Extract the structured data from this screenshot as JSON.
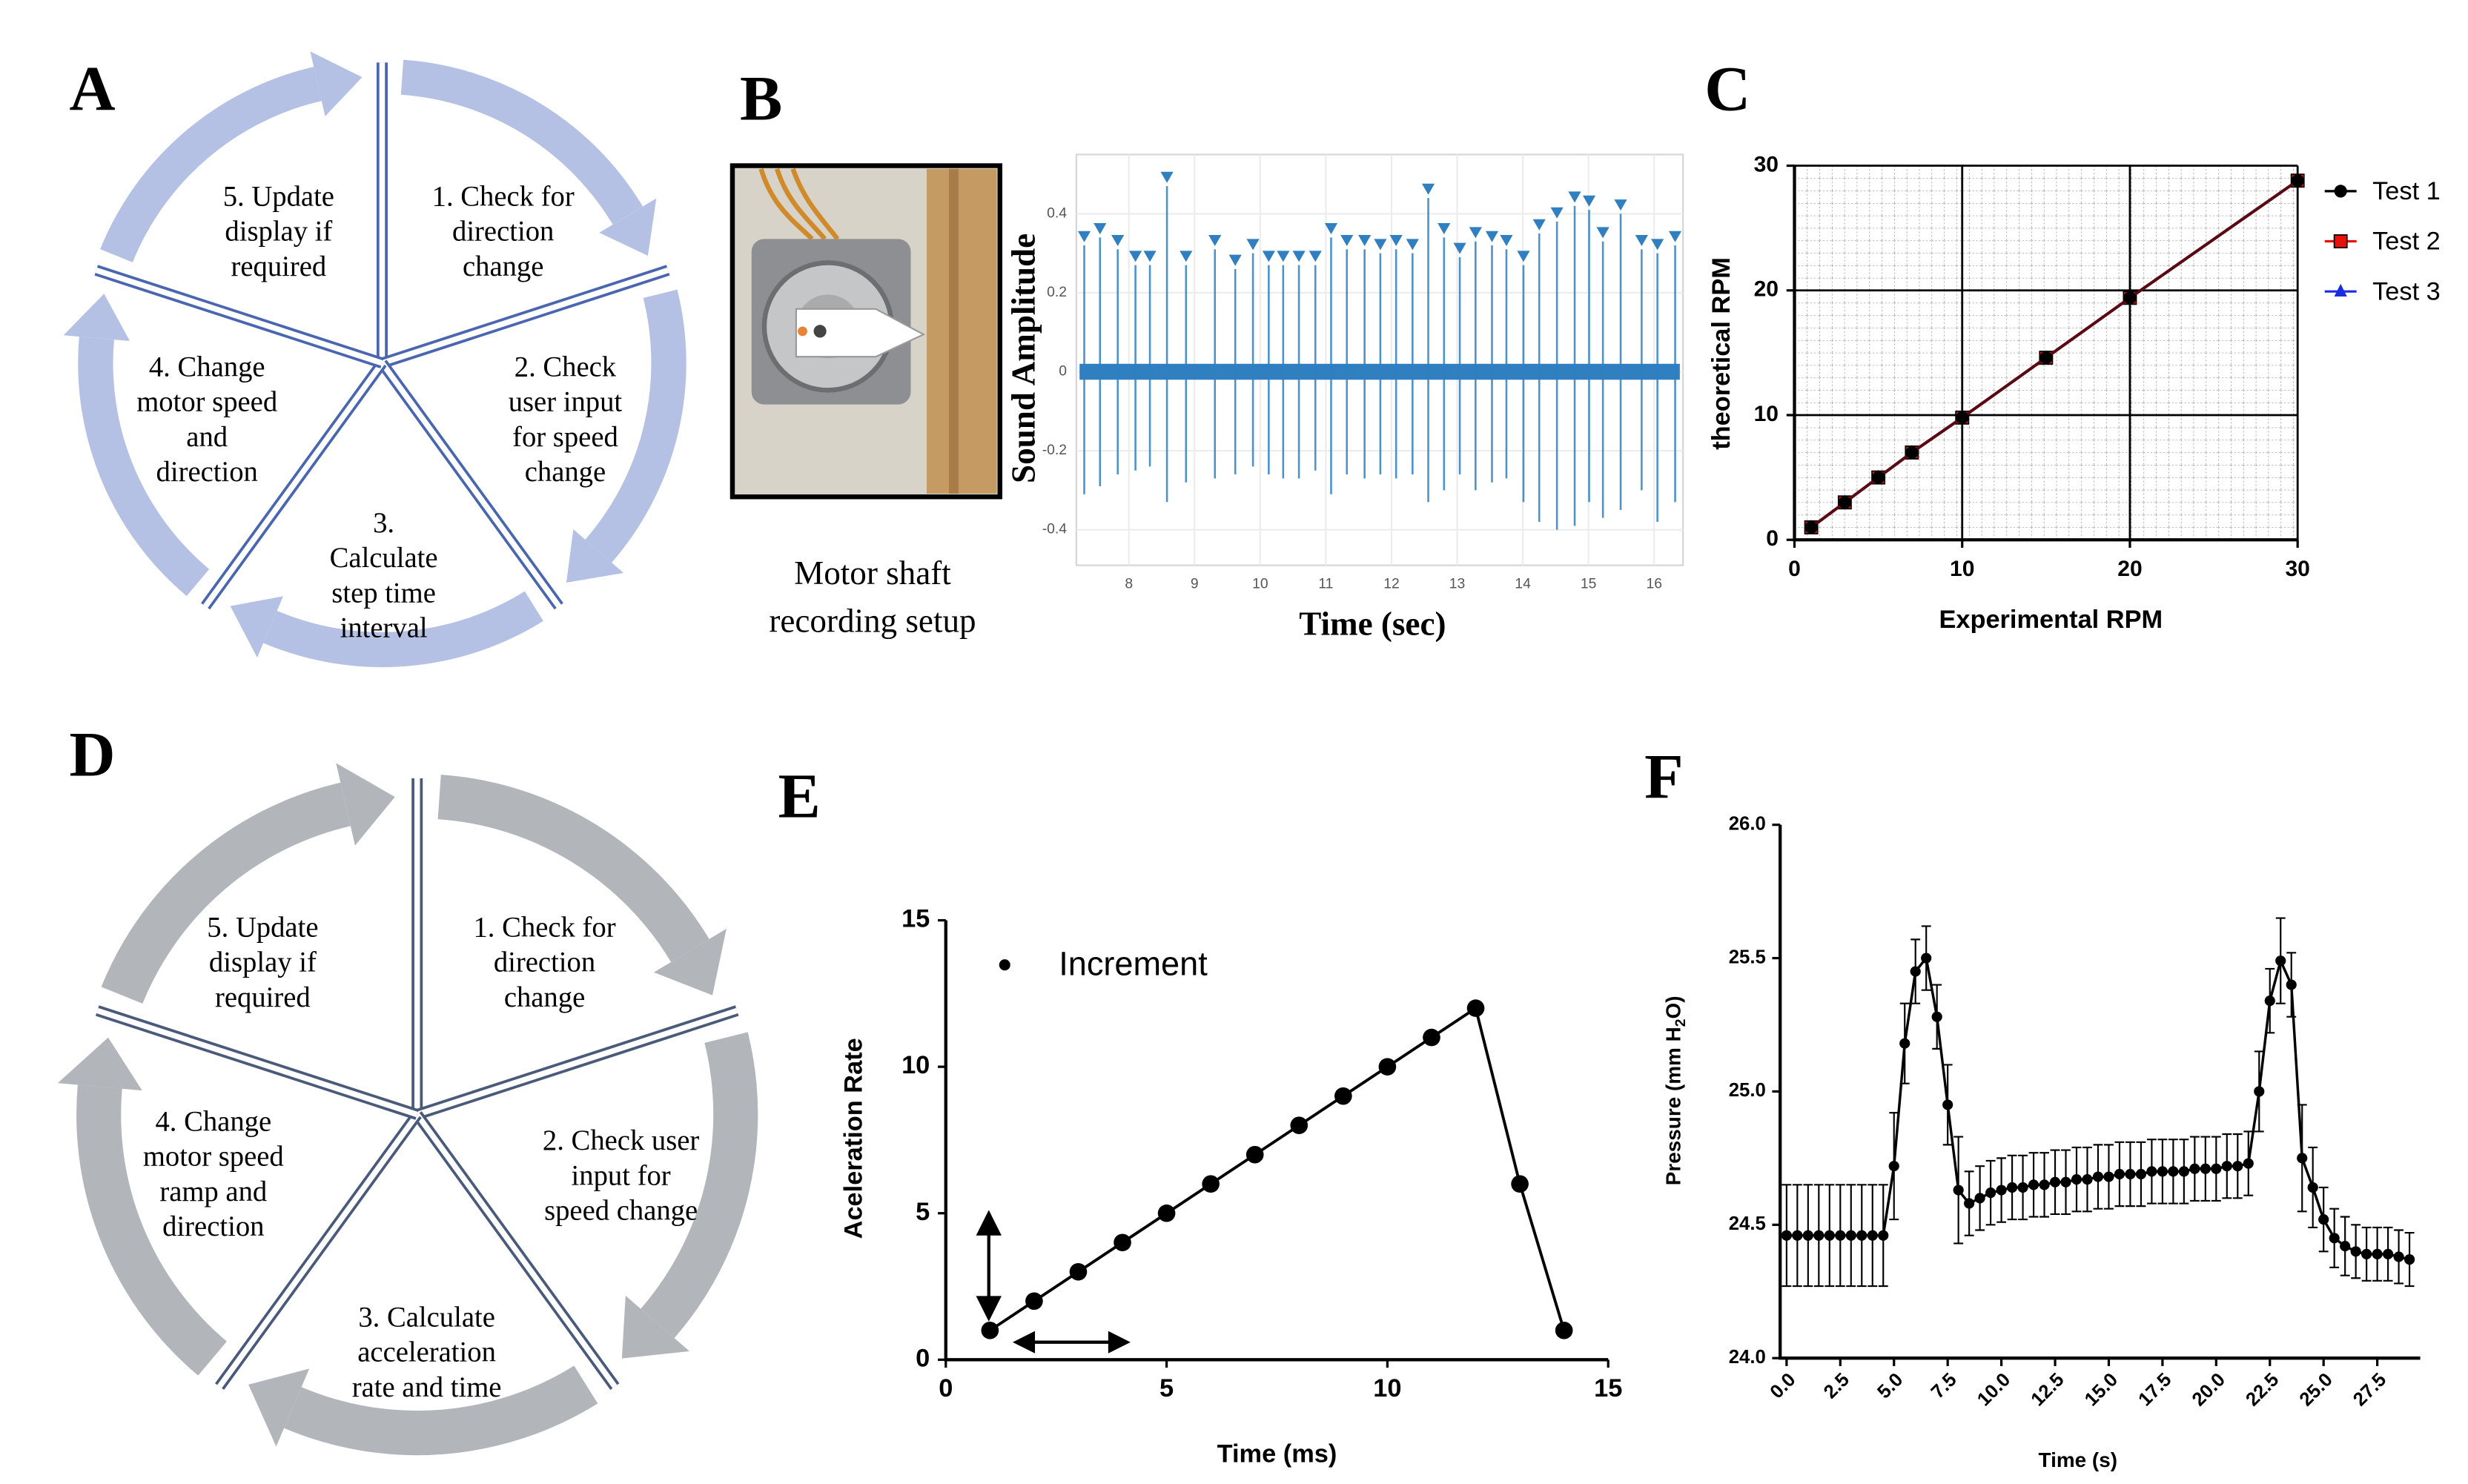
{
  "panel_labels": [
    "A",
    "B",
    "C",
    "D",
    "E",
    "F"
  ],
  "diagram_a": {
    "steps": [
      {
        "lines": [
          "1. Check for",
          "direction",
          "change"
        ]
      },
      {
        "lines": [
          "2. Check",
          "user input",
          "for speed",
          "change"
        ]
      },
      {
        "lines": [
          "3.",
          "Calculate",
          "step time",
          "interval"
        ]
      },
      {
        "lines": [
          "4. Change",
          "motor speed",
          "and",
          "direction"
        ]
      },
      {
        "lines": [
          "5. Update",
          "display if",
          "required"
        ]
      }
    ]
  },
  "diagram_d": {
    "steps": [
      {
        "lines": [
          "1. Check for",
          "direction",
          "change"
        ]
      },
      {
        "lines": [
          "2. Check user",
          "input for",
          "speed change"
        ]
      },
      {
        "lines": [
          "3. Calculate",
          "acceleration",
          "rate and time"
        ]
      },
      {
        "lines": [
          "4. Change",
          "motor speed",
          "ramp and",
          "direction"
        ]
      },
      {
        "lines": [
          "5. Update",
          "display if",
          "required"
        ]
      }
    ]
  },
  "photo": {
    "caption": [
      "Motor shaft",
      "recording setup"
    ]
  },
  "chart_data": [
    {
      "type": "stem",
      "xlabel": "Time (sec)",
      "ylabel": "Sound Amplitude",
      "color": "#2f7fc1",
      "x": [
        7.32,
        7.56,
        7.83,
        8.1,
        8.32,
        8.58,
        8.87,
        9.31,
        9.62,
        9.89,
        10.13,
        10.35,
        10.59,
        10.84,
        11.08,
        11.32,
        11.59,
        11.83,
        12.07,
        12.32,
        12.56,
        12.8,
        13.04,
        13.28,
        13.53,
        13.75,
        14.01,
        14.25,
        14.52,
        14.79,
        15.01,
        15.22,
        15.49,
        15.81,
        16.05,
        16.32
      ],
      "values": [
        0.32,
        0.34,
        0.31,
        0.27,
        0.27,
        0.47,
        0.27,
        0.31,
        0.26,
        0.3,
        0.27,
        0.27,
        0.27,
        0.27,
        0.34,
        0.31,
        0.31,
        0.3,
        0.31,
        0.3,
        0.44,
        0.34,
        0.29,
        0.33,
        0.32,
        0.31,
        0.27,
        0.35,
        0.38,
        0.42,
        0.41,
        0.33,
        0.4,
        0.31,
        0.3,
        0.32
      ],
      "min_values": [
        -0.31,
        -0.29,
        -0.26,
        -0.25,
        -0.24,
        -0.33,
        -0.28,
        -0.27,
        -0.26,
        -0.24,
        -0.26,
        -0.27,
        -0.27,
        -0.25,
        -0.31,
        -0.26,
        -0.27,
        -0.26,
        -0.27,
        -0.26,
        -0.33,
        -0.3,
        -0.26,
        -0.3,
        -0.28,
        -0.27,
        -0.33,
        -0.38,
        -0.4,
        -0.39,
        -0.33,
        -0.37,
        -0.35,
        -0.3,
        -0.38,
        -0.33
      ],
      "xlim": [
        7.2,
        16.44
      ],
      "ylim": [
        -0.49,
        0.55
      ],
      "xticks": [
        8,
        9,
        10,
        11,
        12,
        13,
        14,
        15,
        16
      ],
      "yticks": [
        -0.4,
        -0.2,
        0,
        0.2,
        0.4
      ],
      "grid": true
    },
    {
      "type": "line",
      "xlabel": "Experimental RPM",
      "ylabel": "theoretical RPM",
      "x": [
        1,
        3,
        5,
        7,
        10,
        15,
        20,
        30
      ],
      "series": [
        {
          "name": "Test 1",
          "color": "#000000",
          "marker": "circle",
          "values": [
            1,
            3,
            5,
            7,
            9.8,
            14.6,
            19.4,
            28.8
          ]
        },
        {
          "name": "Test 2",
          "color": "#e8120c",
          "marker": "square",
          "values": [
            1,
            3,
            5,
            7,
            9.8,
            14.6,
            19.4,
            28.8
          ]
        },
        {
          "name": "Test 3",
          "color": "#1a2ee0",
          "marker": "triangle",
          "values": [
            1,
            3,
            5,
            7,
            9.8,
            14.6,
            19.4,
            28.8
          ]
        }
      ],
      "xlim": [
        0,
        30
      ],
      "ylim": [
        0,
        30
      ],
      "xticks": [
        0,
        10,
        20,
        30
      ],
      "yticks": [
        0,
        10,
        20,
        30
      ],
      "grid": true,
      "minor_grid": true,
      "legend": "right"
    },
    {
      "type": "line",
      "xlabel": "Time (ms)",
      "ylabel": "Aceleration Rate",
      "x": [
        1,
        2,
        3,
        4,
        5,
        6,
        7,
        8,
        9,
        10,
        11,
        12,
        13,
        14
      ],
      "series": [
        {
          "name": "Increment",
          "color": "#000000",
          "marker": "circle",
          "values": [
            1,
            2,
            3,
            4,
            5,
            6,
            7,
            8,
            9,
            10,
            11,
            12,
            6,
            1
          ]
        }
      ],
      "xlim": [
        0,
        15
      ],
      "ylim": [
        0,
        15
      ],
      "xticks": [
        0,
        5,
        10,
        15
      ],
      "yticks": [
        0,
        5,
        10,
        15
      ],
      "grid": false,
      "legend": "upper left"
    },
    {
      "type": "errorline",
      "xlabel": "Time (s)",
      "ylabel_parts": [
        "Pressure (mm H",
        "2",
        "O)"
      ],
      "color": "#000000",
      "x": [
        0,
        0.5,
        1,
        1.5,
        2,
        2.5,
        3,
        3.5,
        4,
        4.5,
        5,
        5.5,
        6,
        6.5,
        7,
        7.5,
        8,
        8.5,
        9,
        9.5,
        10,
        10.5,
        11,
        11.5,
        12,
        12.5,
        13,
        13.5,
        14,
        14.5,
        15,
        15.5,
        16,
        16.5,
        17,
        17.5,
        18,
        18.5,
        19,
        19.5,
        20,
        20.5,
        21,
        21.5,
        22,
        22.5,
        23,
        23.5,
        24,
        24.5,
        25,
        25.5,
        26,
        26.5,
        27,
        27.5,
        28,
        28.5,
        29
      ],
      "values": [
        24.46,
        24.46,
        24.46,
        24.46,
        24.46,
        24.46,
        24.46,
        24.46,
        24.46,
        24.46,
        24.72,
        25.18,
        25.45,
        25.5,
        25.28,
        24.95,
        24.63,
        24.58,
        24.6,
        24.62,
        24.63,
        24.64,
        24.64,
        24.65,
        24.65,
        24.66,
        24.66,
        24.67,
        24.67,
        24.68,
        24.68,
        24.69,
        24.69,
        24.69,
        24.7,
        24.7,
        24.7,
        24.7,
        24.71,
        24.71,
        24.71,
        24.72,
        24.72,
        24.73,
        25.0,
        25.34,
        25.49,
        25.4,
        24.75,
        24.64,
        24.52,
        24.45,
        24.42,
        24.4,
        24.39,
        24.39,
        24.39,
        24.38,
        24.37
      ],
      "errors": [
        0.19,
        0.19,
        0.19,
        0.19,
        0.19,
        0.19,
        0.19,
        0.19,
        0.19,
        0.19,
        0.2,
        0.15,
        0.12,
        0.12,
        0.12,
        0.15,
        0.2,
        0.12,
        0.12,
        0.12,
        0.12,
        0.12,
        0.12,
        0.12,
        0.12,
        0.12,
        0.12,
        0.12,
        0.12,
        0.12,
        0.12,
        0.12,
        0.12,
        0.12,
        0.12,
        0.12,
        0.12,
        0.12,
        0.12,
        0.12,
        0.12,
        0.12,
        0.12,
        0.12,
        0.15,
        0.12,
        0.16,
        0.12,
        0.2,
        0.15,
        0.12,
        0.11,
        0.11,
        0.1,
        0.1,
        0.1,
        0.1,
        0.1,
        0.1
      ],
      "xlim": [
        -0.3,
        29.5
      ],
      "ylim": [
        24.0,
        26.0
      ],
      "xticks": [
        {
          "value": 0,
          "label": "0.0"
        },
        2.5,
        {
          "value": 5,
          "label": "5.0"
        },
        7.5,
        {
          "value": 10,
          "label": "10.0"
        },
        12.5,
        {
          "value": 15,
          "label": "15.0"
        },
        17.5,
        {
          "value": 20,
          "label": "20.0"
        },
        22.5,
        {
          "value": 25,
          "label": "25.0"
        },
        27.5
      ],
      "yticks": [
        {
          "value": 24,
          "label": "24.0"
        },
        24.5,
        {
          "value": 25,
          "label": "25.0"
        },
        25.5,
        {
          "value": 26,
          "label": "26.0"
        }
      ],
      "grid": false
    }
  ]
}
